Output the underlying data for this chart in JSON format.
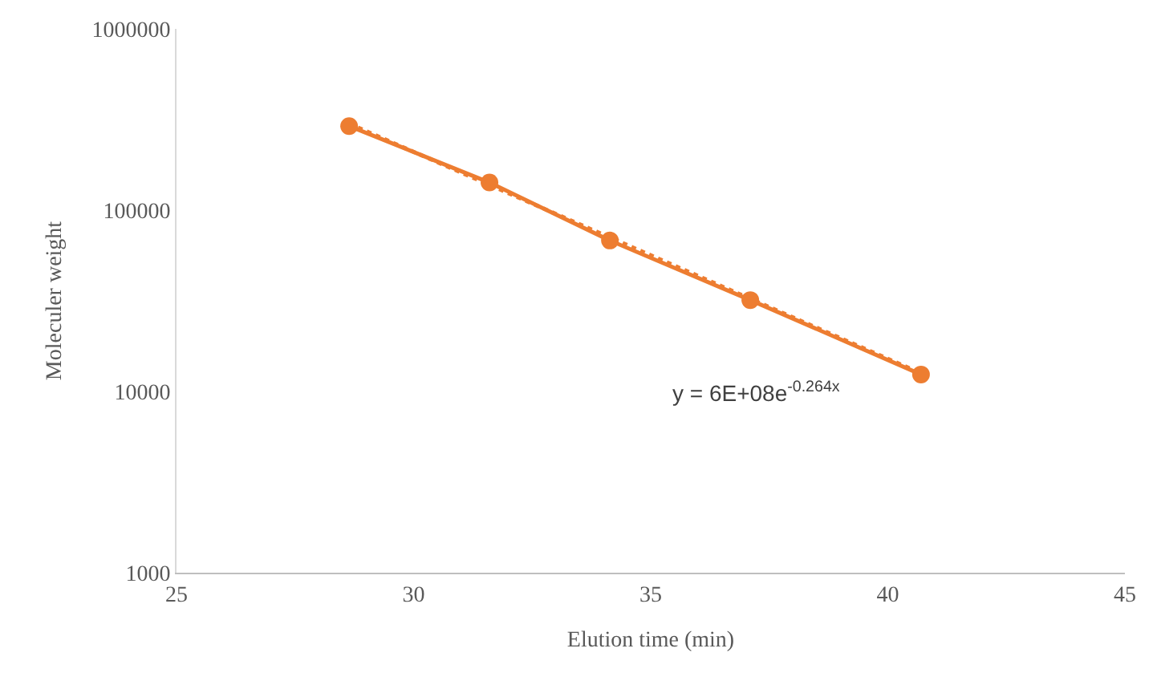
{
  "chart_data": {
    "type": "line",
    "xlabel": "Elution time (min)",
    "ylabel": "Moleculer weight",
    "log": "y",
    "xlim": [
      25,
      45
    ],
    "xticks": [
      25,
      30,
      35,
      40,
      45
    ],
    "ylim": [
      1000,
      1000000
    ],
    "yticks": [
      1000,
      10000,
      100000,
      1000000
    ],
    "marker": "circle",
    "annotations": [
      "y = 6E+08e$^{-0.264x}$"
    ],
    "series": [
      {
        "color": "#ed7d31",
        "x": [
          28.64,
          31.6,
          34.14,
          37.1,
          40.7
        ],
        "values": [
          291000,
          142000,
          68000,
          31900,
          12400
        ],
        "line_style": "solid"
      },
      {
        "color": "#ed7d31",
        "x": [
          28.64,
          40.7
        ],
        "values": [
          300000,
          12600
        ],
        "marker": "none",
        "line_style": "dotted"
      }
    ]
  }
}
